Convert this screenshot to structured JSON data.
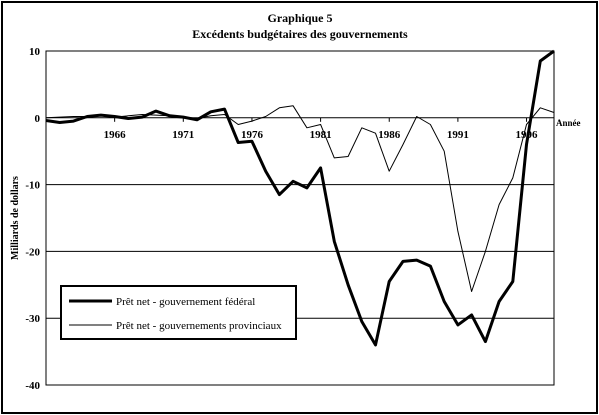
{
  "chart_data": {
    "type": "line",
    "title": "Graphique 5",
    "subtitle": "Excédents budgétaires des gouvernements",
    "ylabel": "Milliards de dollars",
    "xlabel": "Année",
    "ylim": [
      -40,
      10
    ],
    "xlim": [
      1961,
      1998
    ],
    "yticks": [
      "10",
      "0",
      "-10",
      "-20",
      "-30",
      "-40"
    ],
    "ytick_values": [
      10,
      0,
      -10,
      -20,
      -30,
      -40
    ],
    "xticks": [
      "1966",
      "1971",
      "1976",
      "1981",
      "1986",
      "1991",
      "1996"
    ],
    "xtick_values": [
      1966,
      1971,
      1976,
      1981,
      1986,
      1991,
      1996
    ],
    "grid": "horizontal",
    "legend_position": "bottom-left",
    "series": [
      {
        "name": "Prêt net - gouvernement fédéral",
        "style": "thick",
        "x": [
          1961,
          1962,
          1963,
          1964,
          1965,
          1966,
          1967,
          1968,
          1969,
          1970,
          1971,
          1972,
          1973,
          1974,
          1975,
          1976,
          1977,
          1978,
          1979,
          1980,
          1981,
          1982,
          1983,
          1984,
          1985,
          1986,
          1987,
          1988,
          1989,
          1990,
          1991,
          1992,
          1993,
          1994,
          1995,
          1996,
          1997,
          1998
        ],
        "values": [
          -0.4,
          -0.7,
          -0.5,
          0.2,
          0.4,
          0.2,
          -0.1,
          0.1,
          1.0,
          0.3,
          0.1,
          -0.3,
          0.9,
          1.3,
          -3.7,
          -3.5,
          -8.0,
          -11.5,
          -9.5,
          -10.5,
          -7.5,
          -18.5,
          -25.0,
          -30.5,
          -34.0,
          -24.5,
          -21.5,
          -21.3,
          -22.2,
          -27.5,
          -31.0,
          -29.5,
          -33.5,
          -27.5,
          -24.5,
          -4.0,
          8.5,
          10.0
        ]
      },
      {
        "name": "Prêt net - gouvernements provinciaux",
        "style": "thin",
        "x": [
          1961,
          1962,
          1963,
          1964,
          1965,
          1966,
          1967,
          1968,
          1969,
          1970,
          1971,
          1972,
          1973,
          1974,
          1975,
          1976,
          1977,
          1978,
          1979,
          1980,
          1981,
          1982,
          1983,
          1984,
          1985,
          1986,
          1987,
          1988,
          1989,
          1990,
          1991,
          1992,
          1993,
          1994,
          1995,
          1996,
          1997,
          1998
        ],
        "values": [
          0.0,
          0.1,
          0.2,
          0.2,
          0.3,
          0.1,
          0.3,
          0.5,
          0.4,
          0.3,
          0.0,
          -0.1,
          0.3,
          0.5,
          -1.0,
          -0.5,
          0.2,
          1.5,
          1.8,
          -1.5,
          -1.0,
          -6.0,
          -5.8,
          -1.5,
          -2.3,
          -8.0,
          -4.0,
          0.2,
          -1.0,
          -5.0,
          -17.0,
          -26.0,
          -20.0,
          -13.0,
          -9.0,
          -1.0,
          1.5,
          0.8
        ]
      }
    ]
  }
}
